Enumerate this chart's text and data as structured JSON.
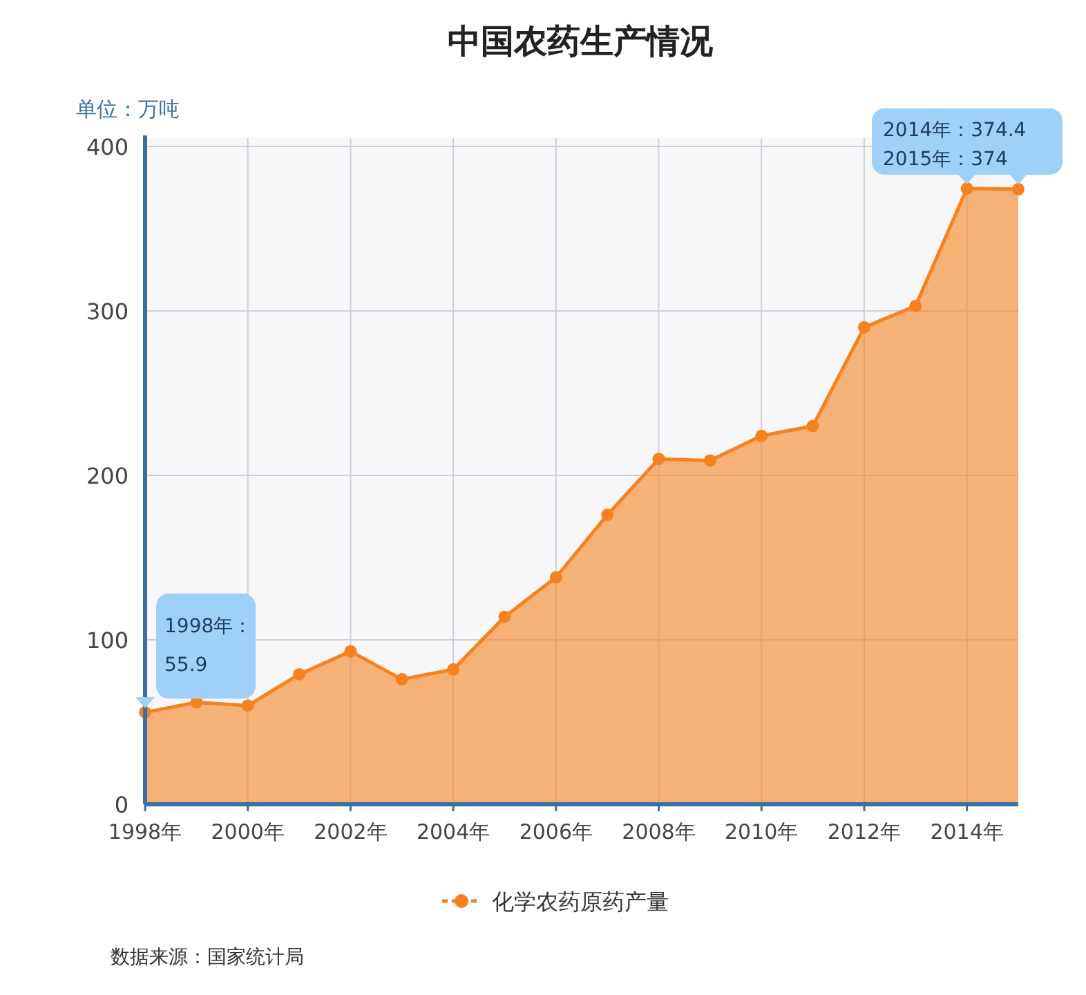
{
  "chart_data": {
    "type": "area",
    "title": "中国农药生产情况",
    "ylabel": "单位：万吨",
    "x": [
      1998,
      1999,
      2000,
      2001,
      2002,
      2003,
      2004,
      2005,
      2006,
      2007,
      2008,
      2009,
      2010,
      2011,
      2012,
      2013,
      2014,
      2015
    ],
    "xlim": [
      1998,
      2015
    ],
    "xticks": [
      {
        "value": 1998,
        "label": "1998年"
      },
      {
        "value": 2000,
        "label": "2000年"
      },
      {
        "value": 2002,
        "label": "2002年"
      },
      {
        "value": 2004,
        "label": "2004年"
      },
      {
        "value": 2006,
        "label": "2006年"
      },
      {
        "value": 2008,
        "label": "2008年"
      },
      {
        "value": 2010,
        "label": "2010年"
      },
      {
        "value": 2012,
        "label": "2012年"
      },
      {
        "value": 2014,
        "label": "2014年"
      }
    ],
    "ylim": [
      0,
      405
    ],
    "yticks": [
      0,
      100,
      200,
      300,
      400
    ],
    "series": [
      {
        "name": "化学农药原药产量",
        "color": "#f5821f",
        "values": [
          55.9,
          62,
          60,
          79,
          93,
          76,
          82,
          114,
          138,
          176,
          210,
          209,
          224,
          230,
          290,
          303,
          374.4,
          374
        ]
      }
    ],
    "grid": true,
    "legend": "bottom",
    "marker": "circle",
    "annotations": [
      {
        "text": "1998年：55.9",
        "x": 1998,
        "y": 55.9
      },
      {
        "text": "2014年：374.4",
        "x": 2014,
        "y": 374.4
      },
      {
        "text": "2015年：374",
        "x": 2015,
        "y": 374
      },
      "数据来源：国家统计局"
    ]
  }
}
